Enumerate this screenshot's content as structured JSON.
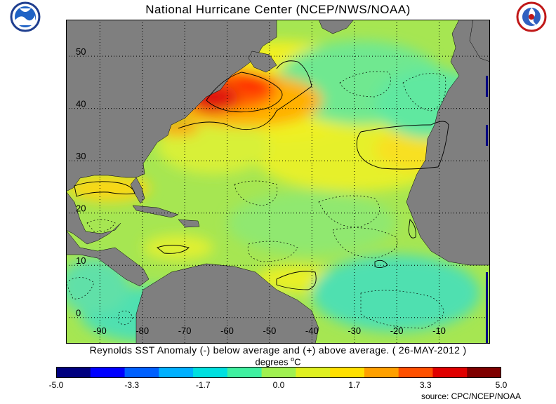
{
  "header": {
    "title": "National Hurricane Center (NCEP/NWS/NOAA)",
    "left_logo_icon": "noaa-logo-icon",
    "right_logo_icon": "nws-logo-icon"
  },
  "map": {
    "projection": "equirectangular",
    "lon_range": [
      -98,
      2
    ],
    "lat_range": [
      -5,
      57
    ],
    "lon_ticks": [
      {
        "value": -90,
        "label": "-90"
      },
      {
        "value": -80,
        "label": "-80"
      },
      {
        "value": -70,
        "label": "-70"
      },
      {
        "value": -60,
        "label": "-60"
      },
      {
        "value": -50,
        "label": "-50"
      },
      {
        "value": -40,
        "label": "-40"
      },
      {
        "value": -30,
        "label": "-30"
      },
      {
        "value": -20,
        "label": "-20"
      },
      {
        "value": -10,
        "label": "-10"
      }
    ],
    "lat_ticks": [
      {
        "value": 0,
        "label": "0"
      },
      {
        "value": 10,
        "label": "10"
      },
      {
        "value": 20,
        "label": "20"
      },
      {
        "value": 30,
        "label": "30"
      },
      {
        "value": 40,
        "label": "40"
      },
      {
        "value": 50,
        "label": "50"
      }
    ],
    "grid": "dotted",
    "land_color": "#7f7f7f",
    "ocean_base_color": "#a8e650"
  },
  "caption": "Reynolds SST Anomaly (-) below average and (+) above average. ( 26-MAY-2012 )",
  "units": {
    "text": "degrees ",
    "degree_sup": "o",
    "unit": "C"
  },
  "colorbar": {
    "ticks": [
      {
        "value": -5.0,
        "label": "-5.0"
      },
      {
        "value": -3.3,
        "label": "-3.3"
      },
      {
        "value": -1.7,
        "label": "-1.7"
      },
      {
        "value": 0.0,
        "label": "0.0"
      },
      {
        "value": 1.7,
        "label": "1.7"
      },
      {
        "value": 3.3,
        "label": "3.3"
      },
      {
        "value": 5.0,
        "label": "5.0"
      }
    ],
    "range": [
      -5.0,
      5.0
    ],
    "colors": [
      "#00007f",
      "#0000ff",
      "#0060ff",
      "#00b0ff",
      "#00e0e0",
      "#40f0a0",
      "#a0f050",
      "#e0f020",
      "#ffe000",
      "#ffa000",
      "#ff5000",
      "#e00000",
      "#7f0000"
    ]
  },
  "source": "source: CPC/NCEP/NOAA"
}
